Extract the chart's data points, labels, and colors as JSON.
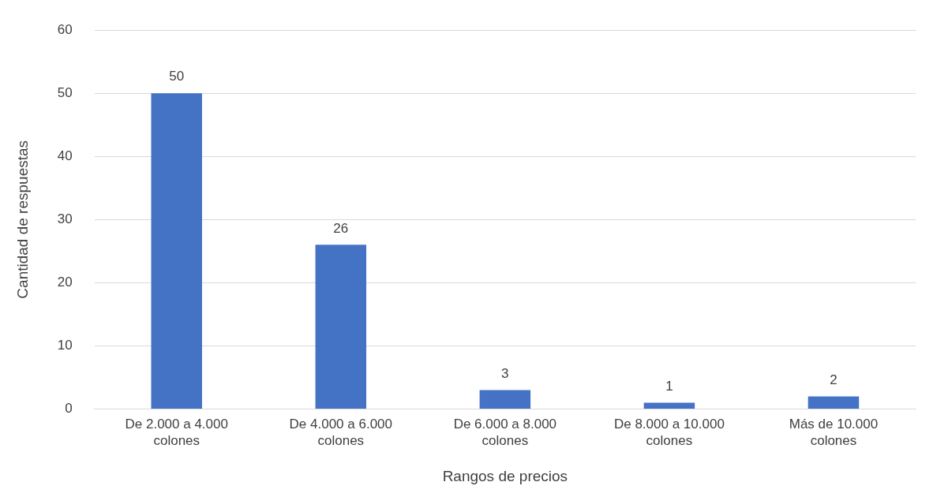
{
  "chart_data": {
    "type": "bar",
    "xlabel": "Rangos de precios",
    "ylabel": "Cantidad de respuestas",
    "categories": [
      "De 2.000 a 4.000 colones",
      "De 4.000 a 6.000 colones",
      "De 6.000 a 8.000 colones",
      "De 8.000 a 10.000 colones",
      "Más de 10.000 colones"
    ],
    "values": [
      50,
      26,
      3,
      1,
      2
    ],
    "color": "#4472c4",
    "ylim": [
      0,
      60
    ],
    "yticks": [
      0,
      10,
      20,
      30,
      40,
      50,
      60
    ],
    "grid": "y",
    "legend": false,
    "data_labels": true
  }
}
